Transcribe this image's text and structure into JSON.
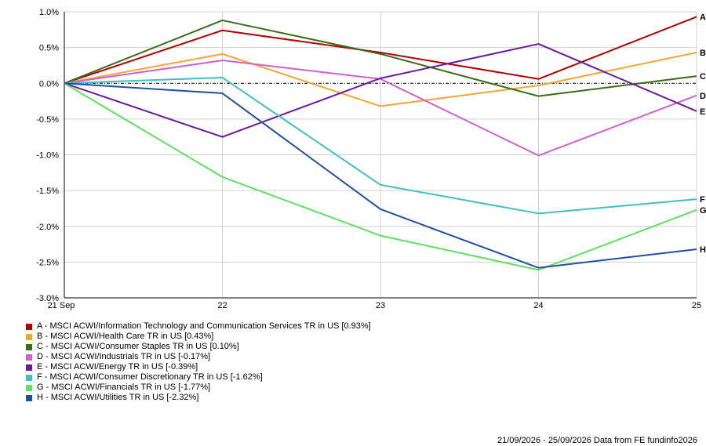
{
  "chart_data": {
    "type": "line",
    "x": [
      "21 Sep",
      "22",
      "23",
      "24",
      "25"
    ],
    "yticks": [
      "1.0%",
      "0.5%",
      "0.0%",
      "-0.5%",
      "-1.0%",
      "-1.5%",
      "-2.0%",
      "-2.5%",
      "-3.0%"
    ],
    "ylim": [
      -3.0,
      1.0
    ],
    "grid": true,
    "legend_position": "bottom",
    "series": [
      {
        "letter": "A",
        "name": "A - MSCI ACWI/Information Technology and Communication Services TR in US [0.93%]",
        "color": "#b30000",
        "values": [
          0.0,
          0.74,
          0.43,
          0.06,
          0.93
        ]
      },
      {
        "letter": "B",
        "name": "B - MSCI ACWI/Health Care TR in US [0.43%]",
        "color": "#f0a830",
        "values": [
          0.0,
          0.41,
          -0.32,
          -0.03,
          0.43
        ]
      },
      {
        "letter": "C",
        "name": "C - MSCI ACWI/Consumer Staples TR in US [0.10%]",
        "color": "#3a6b1a",
        "values": [
          0.0,
          0.88,
          0.41,
          -0.18,
          0.1
        ]
      },
      {
        "letter": "D",
        "name": "D - MSCI ACWI/Industrials TR in US [-0.17%]",
        "color": "#d060d0",
        "values": [
          0.0,
          0.32,
          0.06,
          -1.01,
          -0.17
        ]
      },
      {
        "letter": "E",
        "name": "E - MSCI ACWI/Energy TR in US [-0.39%]",
        "color": "#6a1a9a",
        "values": [
          0.0,
          -0.75,
          0.07,
          0.55,
          -0.39
        ]
      },
      {
        "letter": "F",
        "name": "F - MSCI ACWI/Consumer Discretionary TR in US [-1.62%]",
        "color": "#40c0c0",
        "values": [
          0.0,
          0.08,
          -1.42,
          -1.82,
          -1.62
        ]
      },
      {
        "letter": "G",
        "name": "G - MSCI ACWI/Financials TR in US [-1.77%]",
        "color": "#5ee060",
        "values": [
          0.0,
          -1.31,
          -2.13,
          -2.61,
          -1.77
        ]
      },
      {
        "letter": "H",
        "name": "H - MSCI ACWI/Utilities TR in US [-2.32%]",
        "color": "#204ea0",
        "values": [
          0.0,
          -0.14,
          -1.76,
          -2.58,
          -2.32
        ]
      }
    ]
  },
  "footer": "21/09/2026 - 25/09/2026 Data from FE fundinfo2026"
}
